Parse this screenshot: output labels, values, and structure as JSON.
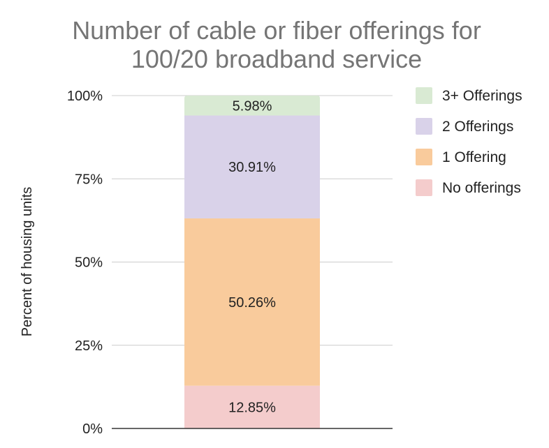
{
  "chart_data": {
    "type": "bar",
    "stacked": true,
    "title": "Number of cable or fiber offerings for 100/20 broadband service",
    "title_lines": [
      "Number of cable or fiber offerings for",
      "100/20 broadband service"
    ],
    "ylabel": "Percent of housing units",
    "xlabel": "",
    "ylim": [
      0,
      100
    ],
    "yticks": [
      0,
      25,
      50,
      75,
      100
    ],
    "ytick_labels": [
      "0%",
      "25%",
      "50%",
      "75%",
      "100%"
    ],
    "grid": true,
    "legend_position": "right",
    "categories": [
      ""
    ],
    "series": [
      {
        "name": "No offerings",
        "values": [
          12.85
        ],
        "label": "12.85%",
        "color": "#f4cccc"
      },
      {
        "name": "1 Offering",
        "values": [
          50.26
        ],
        "label": "50.26%",
        "color": "#f9cb9c"
      },
      {
        "name": "2 Offerings",
        "values": [
          30.91
        ],
        "label": "30.91%",
        "color": "#d9d2e9"
      },
      {
        "name": "3+ Offerings",
        "values": [
          5.98
        ],
        "label": "5.98%",
        "color": "#d9ead3"
      }
    ],
    "legend_order": [
      "3+ Offerings",
      "2 Offerings",
      "1 Offering",
      "No offerings"
    ]
  }
}
